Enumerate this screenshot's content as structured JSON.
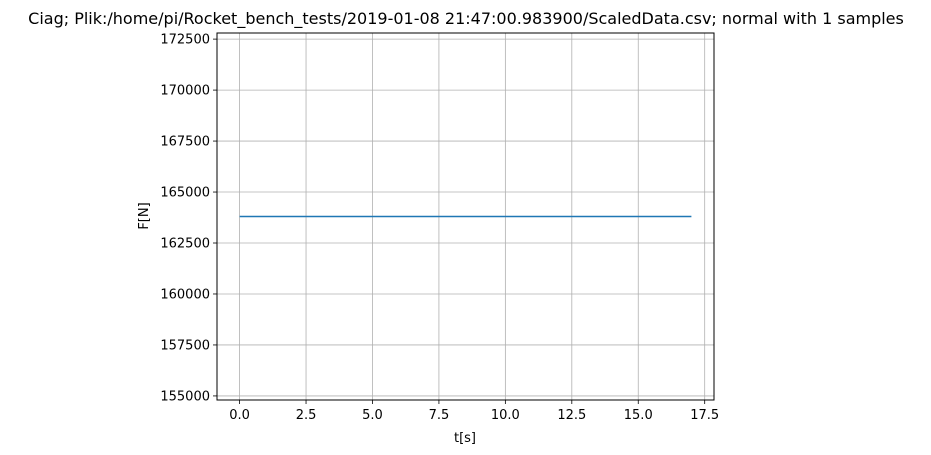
{
  "chart_data": {
    "type": "line",
    "title": "Ciag; Plik:/home/pi/Rocket_bench_tests/2019-01-08 21:47:00.983900/ScaledData.csv; normal with 1 samples",
    "xlabel": "t[s]",
    "ylabel": "F[N]",
    "xlim": [
      -0.85,
      17.85
    ],
    "ylim": [
      154800,
      172800
    ],
    "xticks": [
      0.0,
      2.5,
      5.0,
      7.5,
      10.0,
      12.5,
      15.0,
      17.5
    ],
    "xtick_labels": [
      "0.0",
      "2.5",
      "5.0",
      "7.5",
      "10.0",
      "12.5",
      "15.0",
      "17.5"
    ],
    "yticks": [
      155000,
      157500,
      160000,
      162500,
      165000,
      167500,
      170000,
      172500
    ],
    "ytick_labels": [
      "155000",
      "157500",
      "160000",
      "162500",
      "165000",
      "167500",
      "170000",
      "172500"
    ],
    "grid": true,
    "series": [
      {
        "color": "#1f77b4",
        "x": [
          0.0,
          17.0
        ],
        "y": [
          163800,
          163800
        ]
      }
    ]
  }
}
